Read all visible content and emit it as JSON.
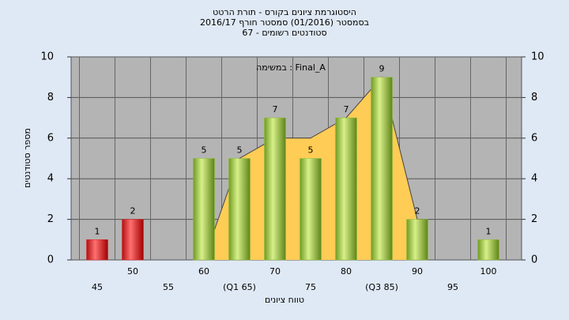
{
  "chart_data": {
    "type": "bar",
    "title": [
      "היסטוגרמת ציונים בקורס - תורת הרטט",
      "בסמסטר (01/2016) סמסטר חורף 2016/17",
      "סטודנטים רשומים - 67"
    ],
    "annotation": "במשימה : Final_A",
    "y_label": "מספר סטודנטים",
    "x_label": "טווח ציונים",
    "categories": [
      "45",
      "50",
      "55",
      "60",
      "(Q1 65)",
      "70",
      "75",
      "80",
      "(Q3 85)",
      "90",
      "95",
      "100"
    ],
    "values": [
      1,
      2,
      null,
      5,
      5,
      7,
      5,
      7,
      9,
      2,
      null,
      1
    ],
    "colors": [
      "#e02020",
      "#e02020",
      "#8fbf3a",
      "#8fbf3a",
      "#8fbf3a",
      "#8fbf3a",
      "#8fbf3a",
      "#8fbf3a",
      "#8fbf3a",
      "#8fbf3a",
      "#8fbf3a",
      "#8fbf3a"
    ],
    "area": {
      "color": "#ffcc55",
      "values": [
        null,
        null,
        null,
        0,
        5,
        6,
        6,
        7,
        9,
        2,
        null,
        null
      ]
    },
    "ylim": [
      0,
      10
    ],
    "yticks": [
      0,
      2,
      4,
      6,
      8,
      10
    ],
    "grid": true
  }
}
